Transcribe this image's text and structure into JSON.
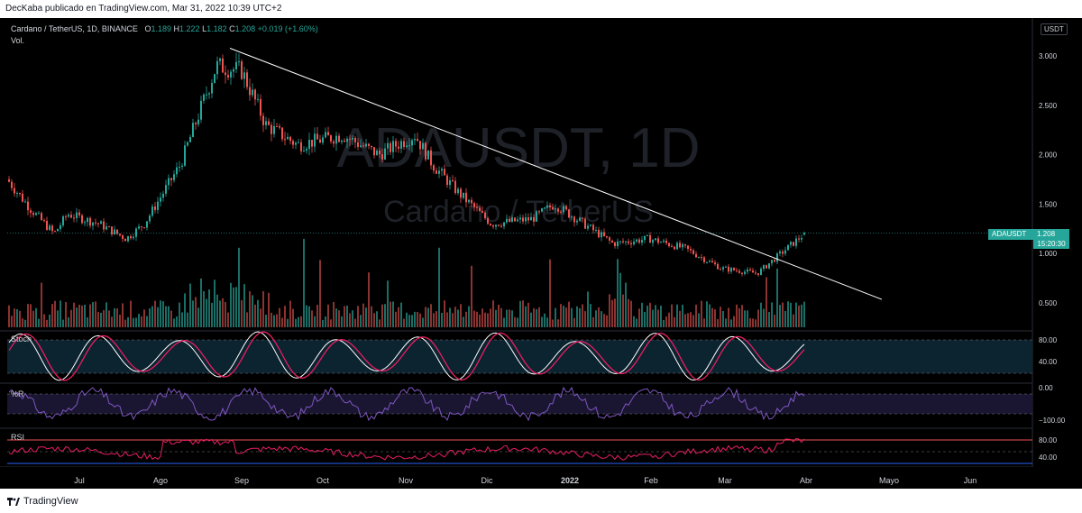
{
  "header": {
    "published": "DecKaba publicado en TradingView.com, Mar 31, 2022 10:39 UTC+2"
  },
  "legend": {
    "symbol": "Cardano / TetherUS, 1D, BINANCE",
    "o_label": "O",
    "o_val": "1.189",
    "h_label": "H",
    "h_val": "1.222",
    "l_label": "L",
    "l_val": "1.182",
    "c_label": "C",
    "c_val": "1.208",
    "chg": "+0.019 (+1.60%)",
    "vol": "Vol."
  },
  "currency": "USDT",
  "watermark": {
    "symbol": "ADAUSDT, 1D",
    "name": "Cardano / TetherUS"
  },
  "price_tag": {
    "symbol": "ADAUSDT",
    "price": "1.208",
    "timer": "15:20:30"
  },
  "indicators": {
    "stoch": "Stoch",
    "wr": "%R",
    "rsi": "RSI"
  },
  "footer": {
    "brand": "TradingView"
  },
  "colors": {
    "up": "#26a69a",
    "down": "#ef5350",
    "stoch_k": "#ffffff",
    "stoch_d": "#e91e63",
    "wr": "#7e57c2",
    "rsi": "#e91e63",
    "trendline": "#ffffff"
  },
  "chart_data": {
    "type": "candlestick",
    "x_ticks": [
      "Jul",
      "Ago",
      "Sep",
      "Oct",
      "Nov",
      "Dic",
      "2022",
      "Feb",
      "Mar",
      "Abr",
      "Mayo",
      "Jun"
    ],
    "y_ticks": [
      "3.000",
      "2.500",
      "2.000",
      "1.500",
      "1.000",
      "0.500"
    ],
    "y_range": [
      0.3,
      3.2
    ],
    "stoch_ticks": [
      "80.00",
      "40.00"
    ],
    "wr_ticks": [
      "0.00",
      "−100.00"
    ],
    "rsi_ticks": [
      "80.00",
      "40.00"
    ],
    "close_anchors": [
      {
        "x": "Jun",
        "y": 1.75
      },
      {
        "x": "Jun",
        "y": 1.45
      },
      {
        "x": "Jun",
        "y": 1.2
      },
      {
        "x": "Jul",
        "y": 1.4
      },
      {
        "x": "Jul",
        "y": 1.3
      },
      {
        "x": "Jul",
        "y": 1.15
      },
      {
        "x": "Ago",
        "y": 1.3
      },
      {
        "x": "Ago",
        "y": 1.9
      },
      {
        "x": "Ago",
        "y": 2.9
      },
      {
        "x": "Sep",
        "y": 2.85
      },
      {
        "x": "Sep",
        "y": 2.3
      },
      {
        "x": "Oct",
        "y": 2.1
      },
      {
        "x": "Oct",
        "y": 2.2
      },
      {
        "x": "Nov",
        "y": 2.0
      },
      {
        "x": "Nov",
        "y": 2.2
      },
      {
        "x": "Nov",
        "y": 1.9
      },
      {
        "x": "Dic",
        "y": 1.6
      },
      {
        "x": "Dic",
        "y": 1.3
      },
      {
        "x": "2022",
        "y": 1.35
      },
      {
        "x": "2022",
        "y": 1.5
      },
      {
        "x": "2022",
        "y": 1.1
      },
      {
        "x": "Feb",
        "y": 1.15
      },
      {
        "x": "Feb",
        "y": 1.05
      },
      {
        "x": "Mar",
        "y": 0.85
      },
      {
        "x": "Mar",
        "y": 0.8
      },
      {
        "x": "Abr",
        "y": 1.208
      }
    ],
    "trendline": {
      "from": {
        "date": "2021-08-31",
        "price": 3.05
      },
      "to": {
        "date": "2022-04-30",
        "price": 0.6
      }
    },
    "last_price": 1.208
  }
}
